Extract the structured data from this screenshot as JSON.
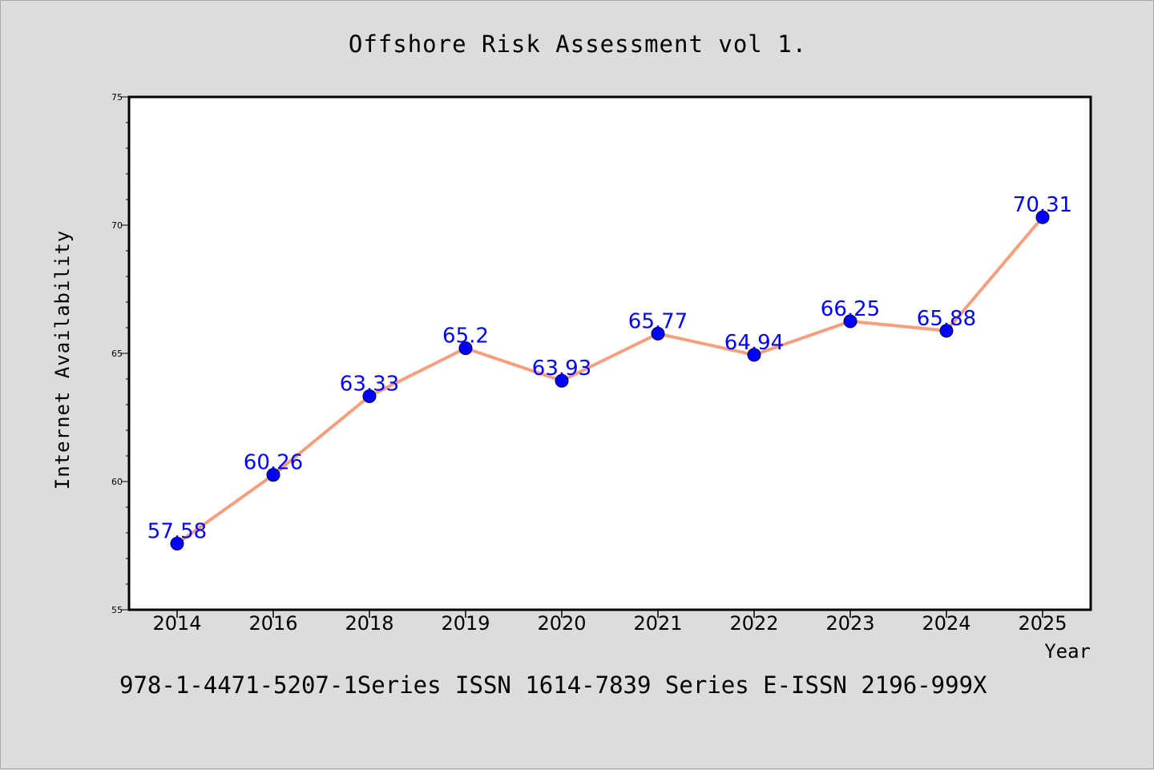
{
  "chart_data": {
    "type": "line",
    "title": "Offshore Risk Assessment vol 1.",
    "xlabel": "Year",
    "ylabel": "Internet Availability",
    "categories": [
      "2014",
      "2016",
      "2018",
      "2019",
      "2020",
      "2021",
      "2022",
      "2023",
      "2024",
      "2025"
    ],
    "series": [
      {
        "values": [
          57.58,
          60.26,
          63.33,
          65.2,
          63.93,
          65.77,
          64.94,
          66.25,
          65.88,
          70.31
        ],
        "data_labels": [
          "57.58",
          "60.26",
          "63.33",
          "65.2",
          "63.93",
          "65.77",
          "64.94",
          "66.25",
          "65.88",
          "70.31"
        ],
        "line_color": "#f4a07e",
        "marker_color": "#0000ff"
      }
    ],
    "ylim": [
      55,
      75
    ],
    "yticks": [
      55,
      60,
      65,
      70,
      75
    ],
    "grid": false,
    "legend": "none"
  },
  "footer": "978-1-4471-5207-1Series ISSN 1614-7839 Series E-ISSN 2196-999X"
}
